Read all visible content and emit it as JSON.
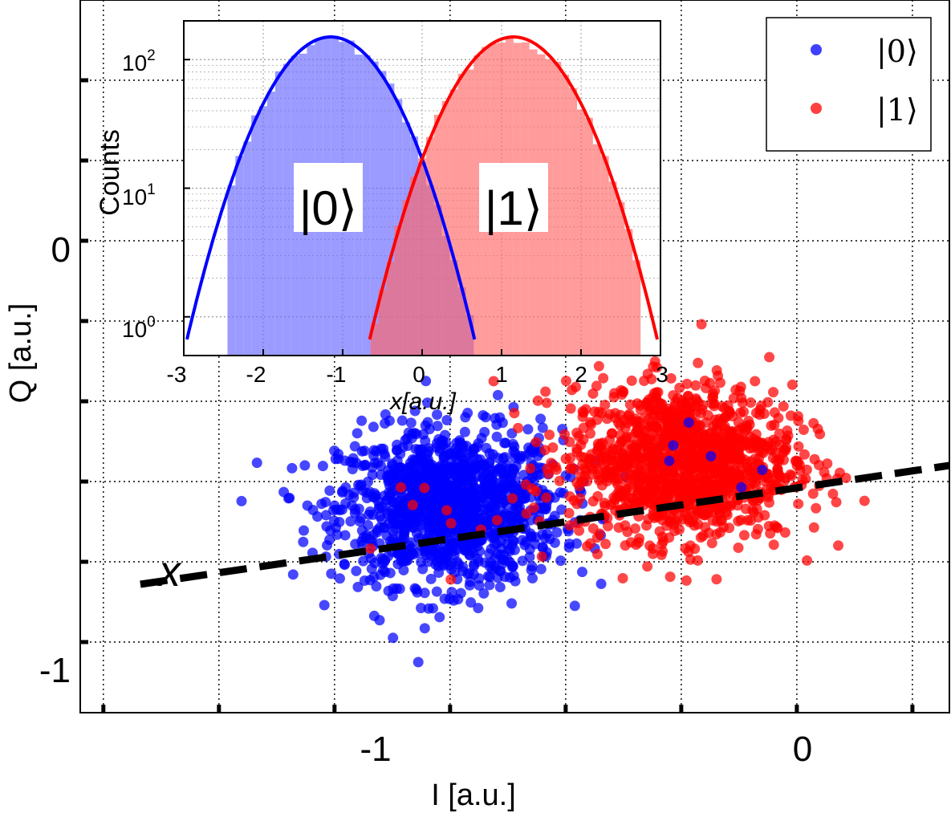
{
  "chart_data": [
    {
      "type": "scatter",
      "xlabel": "I [a.u.]",
      "ylabel": "Q [a.u.]",
      "xlim": [
        -1.55,
        0.33
      ],
      "ylim": [
        -1.22,
        1.0
      ],
      "xticks": [
        -1,
        0
      ],
      "xtick_labels": [
        "-1",
        "0"
      ],
      "yticks": [
        -1,
        0
      ],
      "ytick_labels": [
        "-1",
        "0"
      ],
      "grid": true,
      "legend": {
        "position": "top-right",
        "entries": [
          {
            "label": "|0⟩",
            "color": "#0000ff"
          },
          {
            "label": "|1⟩",
            "color": "#ff0000"
          }
        ]
      },
      "series": [
        {
          "name": "|0⟩",
          "color": "#0000ff",
          "center": [
            -0.75,
            -0.58
          ],
          "sigma": [
            0.12,
            0.12
          ],
          "n_points": 1300
        },
        {
          "name": "|1⟩",
          "color": "#ff0000",
          "center": [
            -0.25,
            -0.44
          ],
          "sigma": [
            0.12,
            0.12
          ],
          "n_points": 1300
        }
      ],
      "axis_line": {
        "label": "x",
        "style": "dashed",
        "color": "#000000",
        "from": [
          -1.42,
          -0.82
        ],
        "to": [
          0.33,
          -0.45
        ]
      }
    },
    {
      "type": "bar",
      "xlabel": "x[a.u.]",
      "ylabel": "Counts",
      "xlim": [
        -3,
        3
      ],
      "yscale": "log",
      "ylim": [
        0.5,
        200
      ],
      "xticks": [
        -3,
        -2,
        -1,
        0,
        1,
        2,
        3
      ],
      "xtick_labels": [
        "-3",
        "-2",
        "-1",
        "0",
        "1",
        "2",
        "3"
      ],
      "yticks": [
        1,
        10,
        100
      ],
      "ytick_labels": [
        "10",
        "10",
        "10"
      ],
      "ytick_exponents": [
        "0",
        "1",
        "2"
      ],
      "grid": true,
      "annotations": [
        "|0⟩",
        "|1⟩"
      ],
      "series": [
        {
          "name": "|0⟩",
          "color": "#6666ff",
          "fit_color": "#0000ff",
          "peak_x": -1.15,
          "peak_count": 150,
          "sigma": 0.55
        },
        {
          "name": "|1⟩",
          "color": "#ff6666",
          "fit_color": "#ff0000",
          "peak_x": 1.15,
          "peak_count": 150,
          "sigma": 0.55
        }
      ]
    }
  ]
}
